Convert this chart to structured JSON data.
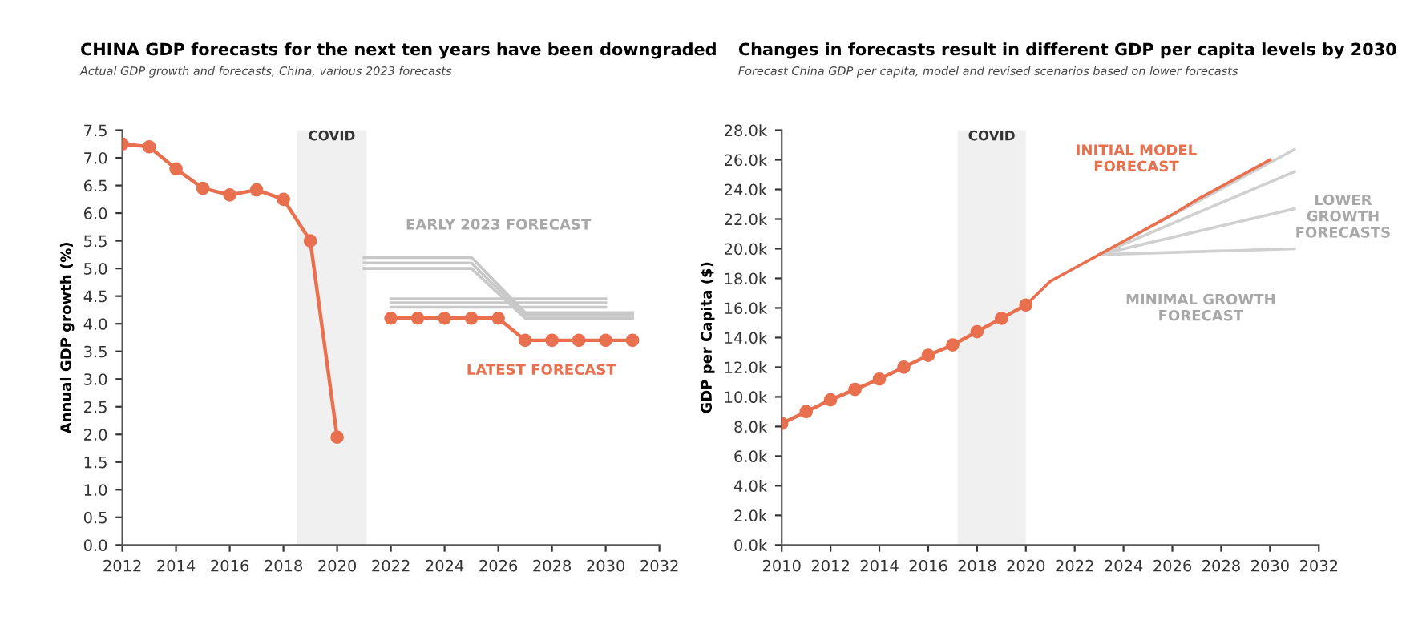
{
  "chart_data": [
    {
      "type": "line",
      "title": "CHINA GDP forecasts for the next ten years have been downgraded",
      "subtitle": "Actual GDP growth and forecasts, China, various 2023 forecasts",
      "ylabel": "Annual GDP growth (%)",
      "xlim": [
        2012,
        2032
      ],
      "xticks": [
        2012,
        2014,
        2016,
        2018,
        2020,
        2022,
        2024,
        2026,
        2028,
        2030,
        2032
      ],
      "ylim": [
        0,
        7.5
      ],
      "yticks": [
        {
          "value": 0,
          "label": "0.0"
        },
        {
          "value": 0.5,
          "label": "0.5"
        },
        {
          "value": 1,
          "label": "1.0"
        },
        {
          "value": 1.5,
          "label": "1.5"
        },
        {
          "value": 2,
          "label": "2.0"
        },
        {
          "value": 2.5,
          "label": "2.5"
        },
        {
          "value": 3,
          "label": "3.0"
        },
        {
          "value": 3.5,
          "label": "3.5"
        },
        {
          "value": 4,
          "label": "4.0"
        },
        {
          "value": 4.5,
          "label": "4.5"
        },
        {
          "value": 5,
          "label": "5.0"
        },
        {
          "value": 5.5,
          "label": "5.5"
        },
        {
          "value": 6,
          "label": "6.0"
        },
        {
          "value": 6.5,
          "label": "6.5"
        },
        {
          "value": 7,
          "label": "7.0"
        },
        {
          "value": 7.5,
          "label": "7.5"
        }
      ],
      "grid": false,
      "legend": false,
      "bands": [
        {
          "axis": "x",
          "from": 2018.5,
          "to": 2021.1,
          "label": "COVID",
          "color": "#f0f0f0"
        }
      ],
      "series": [
        {
          "color": "#c8c8c8",
          "marker": "none",
          "x": [
            2021,
            2025,
            2027,
            2031
          ],
          "values": [
            5.2,
            5.2,
            4.2,
            4.2
          ]
        },
        {
          "color": "#c8c8c8",
          "marker": "none",
          "x": [
            2021,
            2025,
            2027,
            2031
          ],
          "values": [
            5.1,
            5.1,
            4.15,
            4.15
          ]
        },
        {
          "color": "#c8c8c8",
          "marker": "none",
          "x": [
            2021,
            2025,
            2027,
            2031
          ],
          "values": [
            5.0,
            5.0,
            4.1,
            4.1
          ]
        },
        {
          "color": "#c8c8c8",
          "marker": "none",
          "x": [
            2022,
            2030
          ],
          "values": [
            4.45,
            4.45
          ]
        },
        {
          "color": "#c8c8c8",
          "marker": "none",
          "x": [
            2022,
            2030
          ],
          "values": [
            4.38,
            4.38
          ]
        },
        {
          "color": "#c8c8c8",
          "marker": "none",
          "x": [
            2022,
            2030
          ],
          "values": [
            4.3,
            4.3
          ]
        },
        {
          "color": "#e8704f",
          "marker": "circle",
          "x": [
            2012,
            2013,
            2014,
            2015,
            2016,
            2017,
            2018,
            2019,
            2020
          ],
          "values": [
            7.25,
            7.2,
            6.8,
            6.45,
            6.33,
            6.42,
            6.25,
            5.5,
            1.95
          ]
        },
        {
          "color": "#e8704f",
          "marker": "circle",
          "x": [
            2022,
            2023,
            2024,
            2025,
            2026,
            2027,
            2028,
            2029,
            2030,
            2031
          ],
          "values": [
            4.1,
            4.1,
            4.1,
            4.1,
            4.1,
            3.7,
            3.7,
            3.7,
            3.7,
            3.7
          ]
        }
      ],
      "annotations": [
        "EARLY 2023 FORECAST",
        "LATEST FORECAST"
      ]
    },
    {
      "type": "line",
      "title": "Changes in forecasts result in different GDP per capita levels by 2030",
      "subtitle": "Forecast China GDP per capita, model and revised scenarios based on lower forecasts",
      "ylabel": "GDP per Capita ($)",
      "xlim": [
        2010,
        2032
      ],
      "xticks": [
        2010,
        2012,
        2014,
        2016,
        2018,
        2020,
        2022,
        2024,
        2026,
        2028,
        2030,
        2032
      ],
      "ylim": [
        0,
        28
      ],
      "yticks": [
        {
          "value": 0,
          "label": "0.0k"
        },
        {
          "value": 2,
          "label": "2.0k"
        },
        {
          "value": 4,
          "label": "4.0k"
        },
        {
          "value": 6,
          "label": "6.0k"
        },
        {
          "value": 8,
          "label": "8.0k"
        },
        {
          "value": 10,
          "label": "10.0k"
        },
        {
          "value": 12,
          "label": "12.0k"
        },
        {
          "value": 14,
          "label": "14.0k"
        },
        {
          "value": 16,
          "label": "16.0k"
        },
        {
          "value": 18,
          "label": "18.0k"
        },
        {
          "value": 20,
          "label": "20.0k"
        },
        {
          "value": 22,
          "label": "22.0k"
        },
        {
          "value": 24,
          "label": "24.0k"
        },
        {
          "value": 26,
          "label": "26.0k"
        },
        {
          "value": 28,
          "label": "28.0k"
        }
      ],
      "grid": false,
      "legend": false,
      "bands": [
        {
          "axis": "x",
          "from": 2017.2,
          "to": 2020.0,
          "label": "COVID",
          "color": "#f0f0f0"
        }
      ],
      "series": [
        {
          "color": "#d0d0d0",
          "marker": "none",
          "x": [
            2023,
            2031
          ],
          "values": [
            19.6,
            26.7
          ]
        },
        {
          "color": "#d0d0d0",
          "marker": "none",
          "x": [
            2023,
            2031
          ],
          "values": [
            19.6,
            25.2
          ]
        },
        {
          "color": "#d0d0d0",
          "marker": "none",
          "x": [
            2023,
            2031
          ],
          "values": [
            19.6,
            22.7
          ]
        },
        {
          "color": "#d0d0d0",
          "marker": "none",
          "x": [
            2023,
            2031
          ],
          "values": [
            19.6,
            20.0
          ]
        },
        {
          "color": "#e8704f",
          "marker": "none",
          "x": [
            2020,
            2021,
            2022,
            2023,
            2024,
            2025,
            2026,
            2027,
            2028,
            2029,
            2030
          ],
          "values": [
            16.2,
            17.8,
            18.7,
            19.6,
            20.5,
            21.4,
            22.3,
            23.3,
            24.2,
            25.1,
            26.0
          ]
        },
        {
          "color": "#e8704f",
          "marker": "circle",
          "x": [
            2010,
            2011,
            2012,
            2013,
            2014,
            2015,
            2016,
            2017,
            2018,
            2019,
            2020
          ],
          "values": [
            8.2,
            9.0,
            9.8,
            10.5,
            11.2,
            12.0,
            12.8,
            13.5,
            14.4,
            15.3,
            16.2
          ]
        }
      ],
      "annotations": [
        "INITIAL MODEL\nFORECAST",
        "LOWER\nGROWTH\nFORECASTS",
        "MINIMAL GROWTH\nFORECAST"
      ]
    }
  ]
}
